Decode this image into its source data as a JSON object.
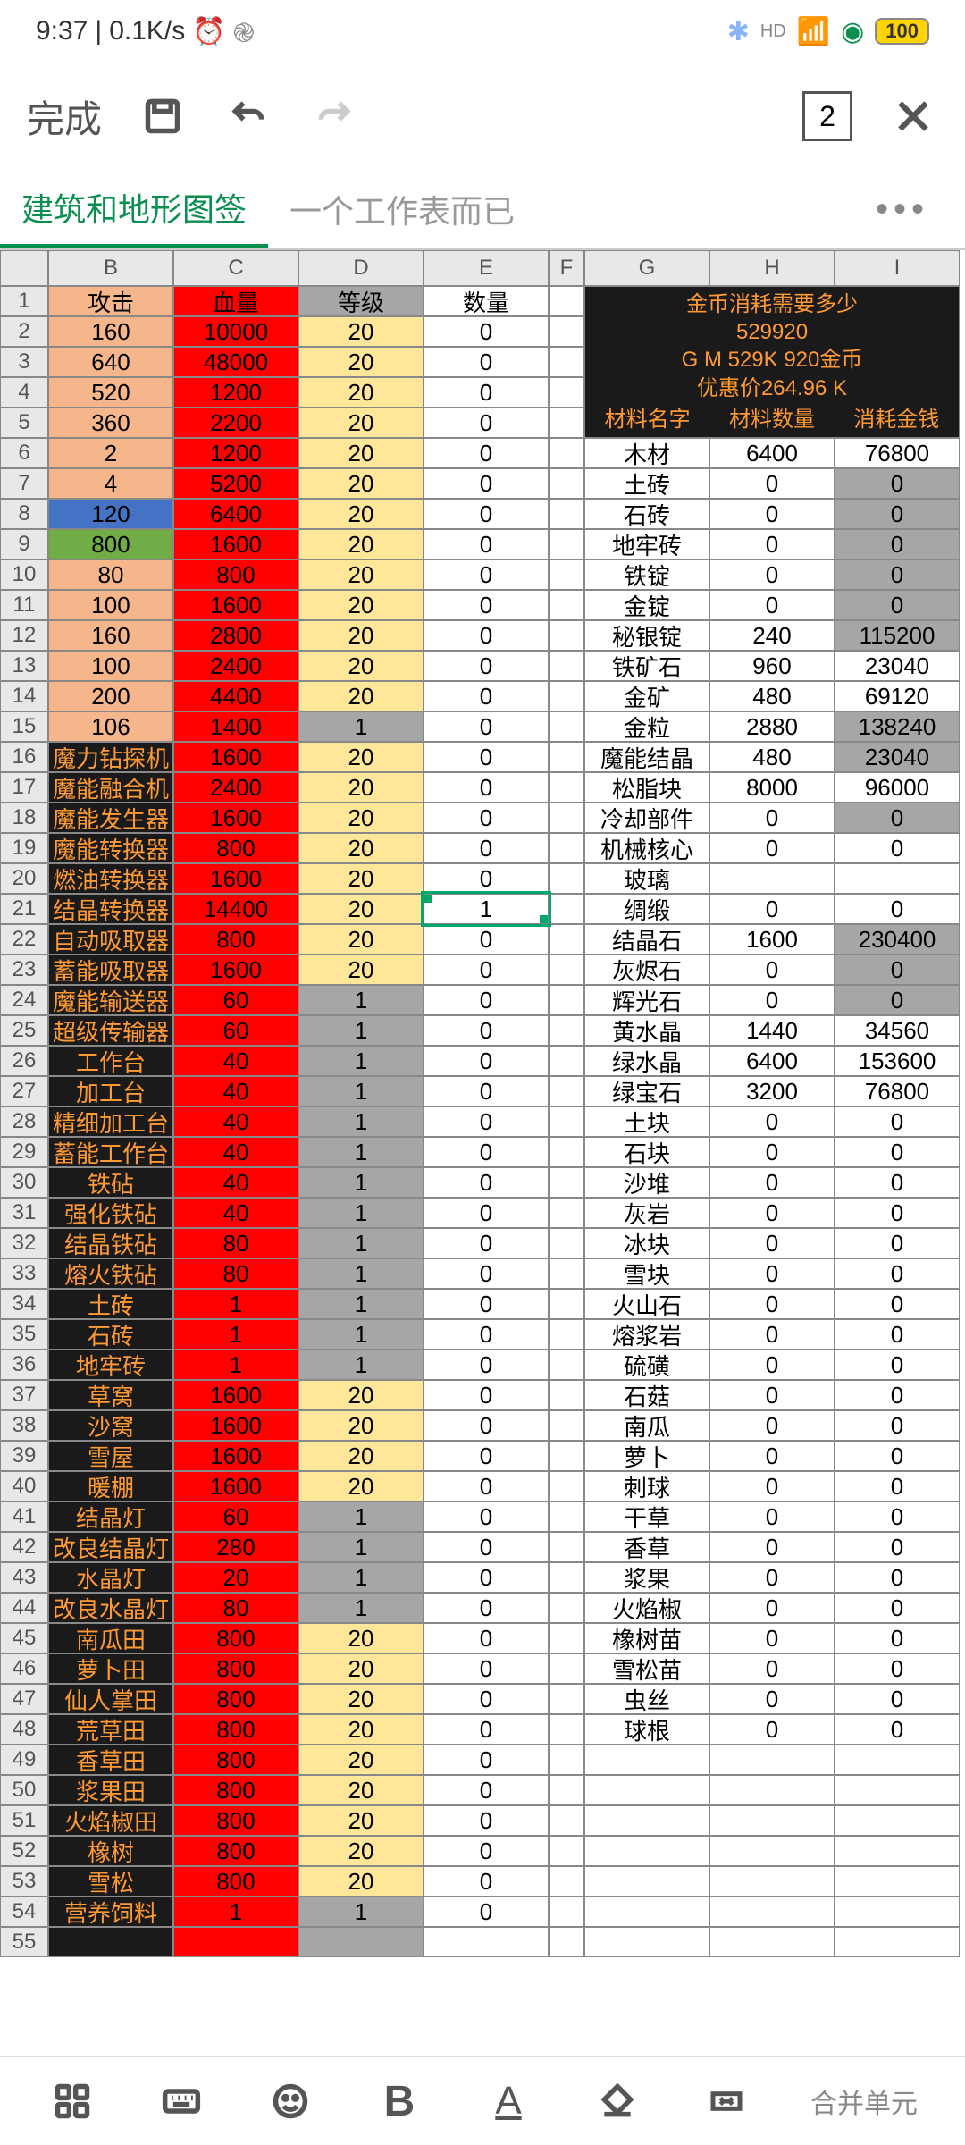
{
  "status": {
    "time": "9:37",
    "speed": "0.1K/s",
    "battery": "100"
  },
  "toolbar": {
    "done": "完成",
    "counter": "2"
  },
  "tabs": {
    "active": "建筑和地形图签",
    "second": "一个工作表而已"
  },
  "cols": [
    "",
    "B",
    "C",
    "D",
    "E",
    "F",
    "G",
    "H",
    "I"
  ],
  "headers": {
    "b": "攻击",
    "c": "血量",
    "d": "等级",
    "e": "数量"
  },
  "goldInfo": {
    "l1": "金币消耗需要多少",
    "l2": "529920",
    "l3": "G M 529K 920金币",
    "l4": "优惠价264.96 K",
    "mh1": "材料名字",
    "mh2": "材料数量",
    "mh3": "消耗金钱"
  },
  "rows": [
    {
      "n": 2,
      "b": "160",
      "c": "10000",
      "d": "20",
      "e": "0",
      "bcls": "peach",
      "dcls": "yellow"
    },
    {
      "n": 3,
      "b": "640",
      "c": "48000",
      "d": "20",
      "e": "0",
      "bcls": "peach",
      "dcls": "yellow"
    },
    {
      "n": 4,
      "b": "520",
      "c": "1200",
      "d": "20",
      "e": "0",
      "bcls": "peach",
      "dcls": "yellow"
    },
    {
      "n": 5,
      "b": "360",
      "c": "2200",
      "d": "20",
      "e": "0",
      "bcls": "peach",
      "dcls": "yellow"
    },
    {
      "n": 6,
      "b": "2",
      "c": "1200",
      "d": "20",
      "e": "0",
      "bcls": "peach",
      "dcls": "yellow"
    },
    {
      "n": 7,
      "b": "4",
      "c": "5200",
      "d": "20",
      "e": "0",
      "bcls": "peach",
      "dcls": "yellow"
    },
    {
      "n": 8,
      "b": "120",
      "c": "6400",
      "d": "20",
      "e": "0",
      "bcls": "blue",
      "dcls": "yellow"
    },
    {
      "n": 9,
      "b": "800",
      "c": "1600",
      "d": "20",
      "e": "0",
      "bcls": "green",
      "dcls": "yellow"
    },
    {
      "n": 10,
      "b": "80",
      "c": "800",
      "d": "20",
      "e": "0",
      "bcls": "peach",
      "dcls": "yellow"
    },
    {
      "n": 11,
      "b": "100",
      "c": "1600",
      "d": "20",
      "e": "0",
      "bcls": "peach",
      "dcls": "yellow"
    },
    {
      "n": 12,
      "b": "160",
      "c": "2800",
      "d": "20",
      "e": "0",
      "bcls": "peach",
      "dcls": "yellow"
    },
    {
      "n": 13,
      "b": "100",
      "c": "2400",
      "d": "20",
      "e": "0",
      "bcls": "peach",
      "dcls": "yellow"
    },
    {
      "n": 14,
      "b": "200",
      "c": "4400",
      "d": "20",
      "e": "0",
      "bcls": "peach",
      "dcls": "yellow"
    },
    {
      "n": 15,
      "b": "106",
      "c": "1400",
      "d": "1",
      "e": "0",
      "bcls": "peach",
      "dcls": "gray"
    },
    {
      "n": 16,
      "b": "魔力钻探机",
      "c": "1600",
      "d": "20",
      "e": "0",
      "bcls": "dark",
      "dcls": "yellow"
    },
    {
      "n": 17,
      "b": "魔能融合机",
      "c": "2400",
      "d": "20",
      "e": "0",
      "bcls": "dark",
      "dcls": "yellow"
    },
    {
      "n": 18,
      "b": "魔能发生器",
      "c": "1600",
      "d": "20",
      "e": "0",
      "bcls": "dark",
      "dcls": "yellow"
    },
    {
      "n": 19,
      "b": "魔能转换器",
      "c": "800",
      "d": "20",
      "e": "0",
      "bcls": "dark",
      "dcls": "yellow"
    },
    {
      "n": 20,
      "b": "燃油转换器",
      "c": "1600",
      "d": "20",
      "e": "0",
      "bcls": "dark",
      "dcls": "yellow"
    },
    {
      "n": 21,
      "b": "结晶转换器",
      "c": "14400",
      "d": "20",
      "e": "1",
      "bcls": "dark",
      "dcls": "yellow",
      "sel": true
    },
    {
      "n": 22,
      "b": "自动吸取器",
      "c": "800",
      "d": "20",
      "e": "0",
      "bcls": "dark",
      "dcls": "yellow"
    },
    {
      "n": 23,
      "b": "蓄能吸取器",
      "c": "1600",
      "d": "20",
      "e": "0",
      "bcls": "dark",
      "dcls": "yellow"
    },
    {
      "n": 24,
      "b": "魔能输送器",
      "c": "60",
      "d": "1",
      "e": "0",
      "bcls": "dark",
      "dcls": "gray"
    },
    {
      "n": 25,
      "b": "超级传输器",
      "c": "60",
      "d": "1",
      "e": "0",
      "bcls": "dark",
      "dcls": "gray"
    },
    {
      "n": 26,
      "b": "工作台",
      "c": "40",
      "d": "1",
      "e": "0",
      "bcls": "dark",
      "dcls": "gray"
    },
    {
      "n": 27,
      "b": "加工台",
      "c": "40",
      "d": "1",
      "e": "0",
      "bcls": "dark",
      "dcls": "gray"
    },
    {
      "n": 28,
      "b": "精细加工台",
      "c": "40",
      "d": "1",
      "e": "0",
      "bcls": "dark",
      "dcls": "gray"
    },
    {
      "n": 29,
      "b": "蓄能工作台",
      "c": "40",
      "d": "1",
      "e": "0",
      "bcls": "dark",
      "dcls": "gray"
    },
    {
      "n": 30,
      "b": "铁砧",
      "c": "40",
      "d": "1",
      "e": "0",
      "bcls": "dark",
      "dcls": "gray"
    },
    {
      "n": 31,
      "b": "强化铁砧",
      "c": "40",
      "d": "1",
      "e": "0",
      "bcls": "dark",
      "dcls": "gray"
    },
    {
      "n": 32,
      "b": "结晶铁砧",
      "c": "80",
      "d": "1",
      "e": "0",
      "bcls": "dark",
      "dcls": "gray"
    },
    {
      "n": 33,
      "b": "熔火铁砧",
      "c": "80",
      "d": "1",
      "e": "0",
      "bcls": "dark",
      "dcls": "gray"
    },
    {
      "n": 34,
      "b": "土砖",
      "c": "1",
      "d": "1",
      "e": "0",
      "bcls": "dark",
      "dcls": "gray"
    },
    {
      "n": 35,
      "b": "石砖",
      "c": "1",
      "d": "1",
      "e": "0",
      "bcls": "dark",
      "dcls": "gray"
    },
    {
      "n": 36,
      "b": "地牢砖",
      "c": "1",
      "d": "1",
      "e": "0",
      "bcls": "dark",
      "dcls": "gray"
    },
    {
      "n": 37,
      "b": "草窝",
      "c": "1600",
      "d": "20",
      "e": "0",
      "bcls": "dark",
      "dcls": "yellow"
    },
    {
      "n": 38,
      "b": "沙窝",
      "c": "1600",
      "d": "20",
      "e": "0",
      "bcls": "dark",
      "dcls": "yellow"
    },
    {
      "n": 39,
      "b": "雪屋",
      "c": "1600",
      "d": "20",
      "e": "0",
      "bcls": "dark",
      "dcls": "yellow"
    },
    {
      "n": 40,
      "b": "暖棚",
      "c": "1600",
      "d": "20",
      "e": "0",
      "bcls": "dark",
      "dcls": "yellow"
    },
    {
      "n": 41,
      "b": "结晶灯",
      "c": "60",
      "d": "1",
      "e": "0",
      "bcls": "dark",
      "dcls": "gray"
    },
    {
      "n": 42,
      "b": "改良结晶灯",
      "c": "280",
      "d": "1",
      "e": "0",
      "bcls": "dark",
      "dcls": "gray"
    },
    {
      "n": 43,
      "b": "水晶灯",
      "c": "20",
      "d": "1",
      "e": "0",
      "bcls": "dark",
      "dcls": "gray"
    },
    {
      "n": 44,
      "b": "改良水晶灯",
      "c": "80",
      "d": "1",
      "e": "0",
      "bcls": "dark",
      "dcls": "gray"
    },
    {
      "n": 45,
      "b": "南瓜田",
      "c": "800",
      "d": "20",
      "e": "0",
      "bcls": "dark",
      "dcls": "yellow"
    },
    {
      "n": 46,
      "b": "萝卜田",
      "c": "800",
      "d": "20",
      "e": "0",
      "bcls": "dark",
      "dcls": "yellow"
    },
    {
      "n": 47,
      "b": "仙人掌田",
      "c": "800",
      "d": "20",
      "e": "0",
      "bcls": "dark",
      "dcls": "yellow"
    },
    {
      "n": 48,
      "b": "荒草田",
      "c": "800",
      "d": "20",
      "e": "0",
      "bcls": "dark",
      "dcls": "yellow"
    },
    {
      "n": 49,
      "b": "香草田",
      "c": "800",
      "d": "20",
      "e": "0",
      "bcls": "dark",
      "dcls": "yellow"
    },
    {
      "n": 50,
      "b": "浆果田",
      "c": "800",
      "d": "20",
      "e": "0",
      "bcls": "dark",
      "dcls": "yellow"
    },
    {
      "n": 51,
      "b": "火焰椒田",
      "c": "800",
      "d": "20",
      "e": "0",
      "bcls": "dark",
      "dcls": "yellow"
    },
    {
      "n": 52,
      "b": "橡树",
      "c": "800",
      "d": "20",
      "e": "0",
      "bcls": "dark",
      "dcls": "yellow"
    },
    {
      "n": 53,
      "b": "雪松",
      "c": "800",
      "d": "20",
      "e": "0",
      "bcls": "dark",
      "dcls": "yellow"
    },
    {
      "n": 54,
      "b": "营养饲料",
      "c": "1",
      "d": "1",
      "e": "0",
      "bcls": "dark",
      "dcls": "gray"
    },
    {
      "n": 55,
      "b": "",
      "c": "",
      "d": "",
      "e": "",
      "bcls": "dark",
      "dcls": "gray"
    }
  ],
  "materials": [
    {
      "g": "木材",
      "h": "6400",
      "i": "76800",
      "icls": "white"
    },
    {
      "g": "土砖",
      "h": "0",
      "i": "0",
      "icls": "gray"
    },
    {
      "g": "石砖",
      "h": "0",
      "i": "0",
      "icls": "gray"
    },
    {
      "g": "地牢砖",
      "h": "0",
      "i": "0",
      "icls": "gray"
    },
    {
      "g": "铁锭",
      "h": "0",
      "i": "0",
      "icls": "gray"
    },
    {
      "g": "金锭",
      "h": "0",
      "i": "0",
      "icls": "gray"
    },
    {
      "g": "秘银锭",
      "h": "240",
      "i": "115200",
      "icls": "gray"
    },
    {
      "g": "铁矿石",
      "h": "960",
      "i": "23040",
      "icls": "white"
    },
    {
      "g": "金矿",
      "h": "480",
      "i": "69120",
      "icls": "white"
    },
    {
      "g": "金粒",
      "h": "2880",
      "i": "138240",
      "icls": "gray"
    },
    {
      "g": "魔能结晶",
      "h": "480",
      "i": "23040",
      "icls": "gray"
    },
    {
      "g": "松脂块",
      "h": "8000",
      "i": "96000",
      "icls": "white"
    },
    {
      "g": "冷却部件",
      "h": "0",
      "i": "0",
      "icls": "gray"
    },
    {
      "g": "机械核心",
      "h": "0",
      "i": "0",
      "icls": "white"
    },
    {
      "g": "玻璃",
      "h": "",
      "i": "",
      "icls": "white"
    },
    {
      "g": "绸缎",
      "h": "0",
      "i": "0",
      "icls": "white"
    },
    {
      "g": "结晶石",
      "h": "1600",
      "i": "230400",
      "icls": "gray"
    },
    {
      "g": "灰烬石",
      "h": "0",
      "i": "0",
      "icls": "gray"
    },
    {
      "g": "辉光石",
      "h": "0",
      "i": "0",
      "icls": "gray"
    },
    {
      "g": "黄水晶",
      "h": "1440",
      "i": "34560",
      "icls": "white"
    },
    {
      "g": "绿水晶",
      "h": "6400",
      "i": "153600",
      "icls": "white"
    },
    {
      "g": "绿宝石",
      "h": "3200",
      "i": "76800",
      "icls": "white"
    },
    {
      "g": "土块",
      "h": "0",
      "i": "0",
      "icls": "white"
    },
    {
      "g": "石块",
      "h": "0",
      "i": "0",
      "icls": "white"
    },
    {
      "g": "沙堆",
      "h": "0",
      "i": "0",
      "icls": "white"
    },
    {
      "g": "灰岩",
      "h": "0",
      "i": "0",
      "icls": "white"
    },
    {
      "g": "冰块",
      "h": "0",
      "i": "0",
      "icls": "white"
    },
    {
      "g": "雪块",
      "h": "0",
      "i": "0",
      "icls": "white"
    },
    {
      "g": "火山石",
      "h": "0",
      "i": "0",
      "icls": "white"
    },
    {
      "g": "熔浆岩",
      "h": "0",
      "i": "0",
      "icls": "white"
    },
    {
      "g": "硫磺",
      "h": "0",
      "i": "0",
      "icls": "white"
    },
    {
      "g": "石菇",
      "h": "0",
      "i": "0",
      "icls": "white"
    },
    {
      "g": "南瓜",
      "h": "0",
      "i": "0",
      "icls": "white"
    },
    {
      "g": "萝卜",
      "h": "0",
      "i": "0",
      "icls": "white"
    },
    {
      "g": "刺球",
      "h": "0",
      "i": "0",
      "icls": "white"
    },
    {
      "g": "干草",
      "h": "0",
      "i": "0",
      "icls": "white"
    },
    {
      "g": "香草",
      "h": "0",
      "i": "0",
      "icls": "white"
    },
    {
      "g": "浆果",
      "h": "0",
      "i": "0",
      "icls": "white"
    },
    {
      "g": "火焰椒",
      "h": "0",
      "i": "0",
      "icls": "white"
    },
    {
      "g": "橡树苗",
      "h": "0",
      "i": "0",
      "icls": "white"
    },
    {
      "g": "雪松苗",
      "h": "0",
      "i": "0",
      "icls": "white"
    },
    {
      "g": "虫丝",
      "h": "0",
      "i": "0",
      "icls": "white"
    },
    {
      "g": "球根",
      "h": "0",
      "i": "0",
      "icls": "white"
    }
  ],
  "bottomBar": {
    "merge": "合并单元"
  }
}
